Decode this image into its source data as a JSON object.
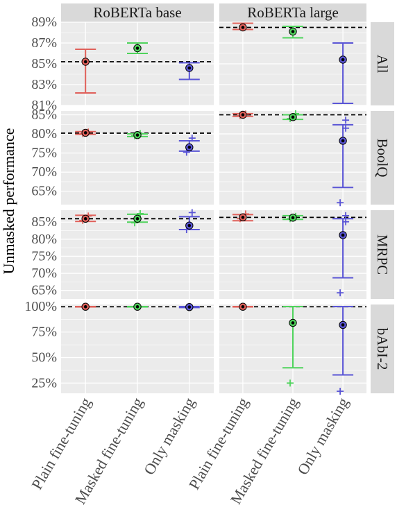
{
  "chart_data": {
    "type": "errorbar-facet",
    "ylabel": "Unmasked performance",
    "methods": [
      "Plain fine-tuning",
      "Masked fine-tuning",
      "Only masking"
    ],
    "colors": [
      "#e0605a",
      "#4fd45c",
      "#5a55d6"
    ],
    "col_facets": [
      "RoBERTa base",
      "RoBERTa large"
    ],
    "row_facets": [
      {
        "label": "All",
        "ylim": [
          81,
          89
        ],
        "ticks": [
          81,
          83,
          85,
          87,
          89
        ],
        "tick_labels": [
          "81%",
          "83%",
          "85%",
          "87%",
          "89%"
        ]
      },
      {
        "label": "BoolQ",
        "ylim": [
          61.5,
          86
        ],
        "ticks": [
          65,
          70,
          75,
          80,
          85
        ],
        "tick_labels": [
          "65%",
          "70%",
          "75%",
          "80%",
          "85%"
        ]
      },
      {
        "label": "MRPC",
        "ylim": [
          62.5,
          88.5
        ],
        "ticks": [
          65,
          70,
          75,
          80,
          85
        ],
        "tick_labels": [
          "65%",
          "70%",
          "75%",
          "80%",
          "85%"
        ]
      },
      {
        "label": "bAbI-2",
        "ylim": [
          15,
          102
        ],
        "ticks": [
          25,
          50,
          75,
          100
        ],
        "tick_labels": [
          "25%",
          "50%",
          "75%",
          "100%"
        ]
      }
    ],
    "reference": [
      [
        85.2,
        88.5
      ],
      [
        80.2,
        85.0
      ],
      [
        86.0,
        86.4
      ],
      [
        99.8,
        99.8
      ]
    ],
    "cells": [
      [
        [
          {
            "mean": 85.2,
            "lo": 82.2,
            "hi": 86.4,
            "points": []
          },
          {
            "mean": 86.5,
            "lo": 86.0,
            "hi": 87.0,
            "points": []
          },
          {
            "mean": 84.6,
            "lo": 83.5,
            "hi": 85.1,
            "points": []
          }
        ],
        [
          {
            "mean": 88.5,
            "lo": 88.3,
            "hi": 88.9,
            "points": []
          },
          {
            "mean": 88.1,
            "lo": 87.5,
            "hi": 88.6,
            "points": []
          },
          {
            "mean": 85.4,
            "lo": 81.2,
            "hi": 87.0,
            "points": []
          }
        ]
      ],
      [
        [
          {
            "mean": 80.3,
            "lo": 79.9,
            "hi": 80.6,
            "points": [
              80.5,
              80.1
            ]
          },
          {
            "mean": 79.7,
            "lo": 79.3,
            "hi": 80.0,
            "points": [
              79.5,
              80.1
            ]
          },
          {
            "mean": 76.5,
            "lo": 75.5,
            "hi": 78.2,
            "points": [
              78.9,
              75.2
            ]
          }
        ],
        [
          {
            "mean": 85.0,
            "lo": 84.6,
            "hi": 85.3,
            "points": [
              84.8,
              85.2
            ]
          },
          {
            "mean": 84.4,
            "lo": 83.8,
            "hi": 85.0,
            "points": [
              84.0,
              85.3
            ]
          },
          {
            "mean": 78.2,
            "lo": 66.0,
            "hi": 82.4,
            "points": [
              83.6,
              81.5,
              62.0
            ]
          }
        ]
      ],
      [
        [
          {
            "mean": 86.0,
            "lo": 85.2,
            "hi": 87.0,
            "points": [
              85.5,
              86.8
            ]
          },
          {
            "mean": 86.0,
            "lo": 85.0,
            "hi": 87.3,
            "points": [
              84.8,
              87.5
            ]
          },
          {
            "mean": 84.0,
            "lo": 82.8,
            "hi": 86.6,
            "points": [
              87.8,
              82.8
            ]
          }
        ],
        [
          {
            "mean": 86.4,
            "lo": 85.4,
            "hi": 87.2,
            "points": [
              86.0,
              87.4
            ]
          },
          {
            "mean": 86.3,
            "lo": 85.8,
            "hi": 86.9,
            "points": [
              86.0,
              86.7
            ]
          },
          {
            "mean": 81.2,
            "lo": 68.7,
            "hi": 86.0,
            "points": [
              86.9,
              85.1,
              64.3
            ]
          }
        ]
      ],
      [
        [
          {
            "mean": 99.8,
            "lo": 99.6,
            "hi": 100.0,
            "points": []
          },
          {
            "mean": 99.8,
            "lo": 99.6,
            "hi": 100.0,
            "points": []
          },
          {
            "mean": 99.5,
            "lo": 99.0,
            "hi": 100.0,
            "points": []
          }
        ],
        [
          {
            "mean": 99.8,
            "lo": 99.6,
            "hi": 100.0,
            "points": []
          },
          {
            "mean": 84.0,
            "lo": 40.0,
            "hi": 100.0,
            "points": [
              25.0
            ]
          },
          {
            "mean": 82.0,
            "lo": 33.0,
            "hi": 100.0,
            "points": [
              17.0
            ]
          }
        ]
      ]
    ]
  }
}
